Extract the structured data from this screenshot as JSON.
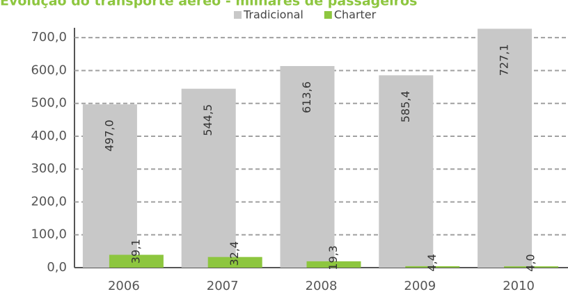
{
  "chart_data": {
    "type": "bar",
    "title": "Evolução do transporte aéreo - milhares de passageiros",
    "categories": [
      "2006",
      "2007",
      "2008",
      "2009",
      "2010"
    ],
    "series": [
      {
        "name": "Tradicional",
        "color": "#c8c8c8",
        "values": [
          497.0,
          544.5,
          613.6,
          585.4,
          727.1
        ],
        "value_labels": [
          "497,0",
          "544,5",
          "613,6",
          "585,4",
          "727,1"
        ]
      },
      {
        "name": "Charter",
        "color": "#8dc63f",
        "values": [
          39.1,
          32.4,
          19.3,
          4.4,
          4.0
        ],
        "value_labels": [
          "39,1",
          "32,4",
          "19,3",
          "4,4",
          "4,0"
        ]
      }
    ],
    "ylim": [
      0,
      730
    ],
    "yticks": [
      {
        "value": 0,
        "label": "0,0"
      },
      {
        "value": 100,
        "label": "100,0"
      },
      {
        "value": 200,
        "label": "200,0"
      },
      {
        "value": 300,
        "label": "300,0"
      },
      {
        "value": 400,
        "label": "400,0"
      },
      {
        "value": 500,
        "label": "500,0"
      },
      {
        "value": 600,
        "label": "600,0"
      },
      {
        "value": 700,
        "label": "700,0"
      }
    ],
    "grid": true,
    "legend": "top"
  }
}
